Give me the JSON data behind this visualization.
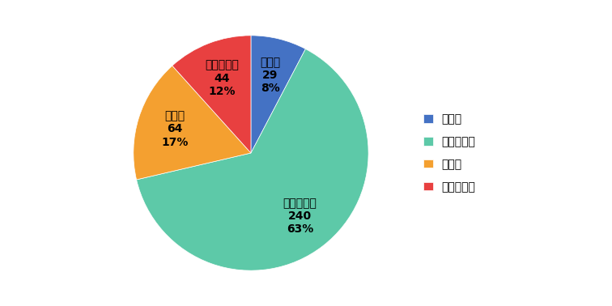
{
  "labels": [
    "増えた",
    "同じぐらい",
    "減った",
    "わからない"
  ],
  "values": [
    29,
    240,
    64,
    44
  ],
  "percentages": [
    8,
    63,
    17,
    12
  ],
  "colors": [
    "#4472C4",
    "#5DC9A8",
    "#F4A030",
    "#E84040"
  ],
  "legend_labels": [
    "増えた",
    "同じぐらい",
    "減った",
    "わからない"
  ],
  "startangle": 90,
  "figsize": [
    7.56,
    3.78
  ],
  "dpi": 100,
  "label_fontsize": 10,
  "legend_fontsize": 10
}
